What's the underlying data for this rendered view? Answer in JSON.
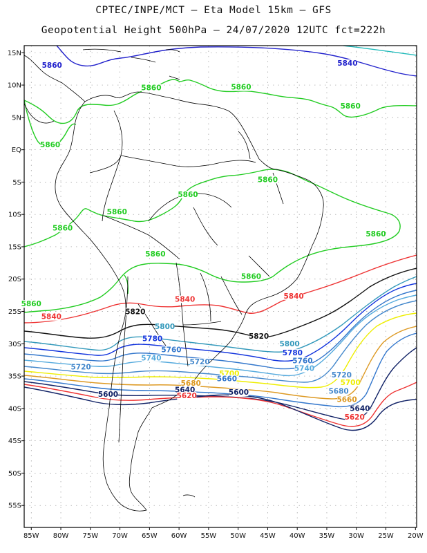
{
  "title_line1": "CPTEC/INPE/MCT –  Eta Model 15km – GFS",
  "title_line2": "Geopotential Height 500hPa – 24/07/2020 12UTC fct=222h",
  "lat_labels": [
    "15N",
    "10N",
    "5N",
    "EQ",
    "5S",
    "10S",
    "15S",
    "20S",
    "25S",
    "30S",
    "35S",
    "40S",
    "45S",
    "50S",
    "55S"
  ],
  "lat_values": [
    15,
    10,
    5,
    0,
    -5,
    -10,
    -15,
    -20,
    -25,
    -30,
    -35,
    -40,
    -45,
    -50,
    -55
  ],
  "lon_labels": [
    "85W",
    "80W",
    "75W",
    "70W",
    "65W",
    "60W",
    "55W",
    "50W",
    "45W",
    "40W",
    "35W",
    "30W",
    "25W",
    "20W"
  ],
  "lon_values": [
    -85,
    -80,
    -75,
    -70,
    -65,
    -60,
    -55,
    -50,
    -45,
    -40,
    -35,
    -30,
    -25,
    -20
  ],
  "colors": {
    "c5860": "#22cc22",
    "c5840": "#ee3333",
    "c5820": "#111111",
    "c5800": "#3399bb",
    "c5780": "#1133dd",
    "c5760": "#3377cc",
    "c5740": "#55aadd",
    "c5720": "#4488cc",
    "c5700": "#eeee00",
    "c5680": "#dd9922",
    "c5640": "#112266",
    "c5620": "#ee3333",
    "c5600": "#112266",
    "c5880": "#2222cc",
    "c5900": "#22bbbb",
    "map": "#000000"
  },
  "labels": [
    {
      "text": "5860",
      "lon": -81.5,
      "lat": 12.7,
      "color": "#2222cc"
    },
    {
      "text": "5840",
      "lon": -31.5,
      "lat": 13.0,
      "color": "#2222cc"
    },
    {
      "text": "5860",
      "lon": -64.7,
      "lat": 9.2,
      "color": "#22cc22"
    },
    {
      "text": "5860",
      "lon": -49.5,
      "lat": 9.3,
      "color": "#22cc22"
    },
    {
      "text": "5860",
      "lon": -31.0,
      "lat": 6.4,
      "color": "#22cc22"
    },
    {
      "text": "5860",
      "lon": -81.8,
      "lat": 0.4,
      "color": "#22cc22"
    },
    {
      "text": "5860",
      "lon": -58.5,
      "lat": -7.3,
      "color": "#22cc22"
    },
    {
      "text": "5860",
      "lon": -45.0,
      "lat": -5.0,
      "color": "#22cc22"
    },
    {
      "text": "5860",
      "lon": -70.5,
      "lat": -10.0,
      "color": "#22cc22"
    },
    {
      "text": "5860",
      "lon": -79.7,
      "lat": -12.5,
      "color": "#22cc22"
    },
    {
      "text": "5860",
      "lon": -26.7,
      "lat": -13.4,
      "color": "#22cc22"
    },
    {
      "text": "5860",
      "lon": -64.0,
      "lat": -16.5,
      "color": "#22cc22"
    },
    {
      "text": "5860",
      "lon": -47.8,
      "lat": -20.0,
      "color": "#22cc22"
    },
    {
      "text": "5860",
      "lon": -85.0,
      "lat": -24.2,
      "color": "#22cc22"
    },
    {
      "text": "5840",
      "lon": -59.0,
      "lat": -23.5,
      "color": "#ee3333"
    },
    {
      "text": "5840",
      "lon": -40.6,
      "lat": -23.0,
      "color": "#ee3333"
    },
    {
      "text": "5840",
      "lon": -81.6,
      "lat": -26.2,
      "color": "#ee3333"
    },
    {
      "text": "5820",
      "lon": -67.4,
      "lat": -25.4,
      "color": "#111111"
    },
    {
      "text": "5820",
      "lon": -46.5,
      "lat": -29.2,
      "color": "#111111"
    },
    {
      "text": "5800",
      "lon": -62.4,
      "lat": -27.7,
      "color": "#3399bb"
    },
    {
      "text": "5800",
      "lon": -41.3,
      "lat": -30.4,
      "color": "#3399bb"
    },
    {
      "text": "5780",
      "lon": -64.5,
      "lat": -29.6,
      "color": "#1133dd"
    },
    {
      "text": "5780",
      "lon": -40.8,
      "lat": -31.8,
      "color": "#1133dd"
    },
    {
      "text": "5760",
      "lon": -61.3,
      "lat": -31.3,
      "color": "#3377cc"
    },
    {
      "text": "5760",
      "lon": -39.1,
      "lat": -33.0,
      "color": "#3377cc"
    },
    {
      "text": "5740",
      "lon": -64.7,
      "lat": -32.6,
      "color": "#55aadd"
    },
    {
      "text": "5740",
      "lon": -38.8,
      "lat": -34.2,
      "color": "#55aadd"
    },
    {
      "text": "5720",
      "lon": -56.5,
      "lat": -33.2,
      "color": "#4488cc"
    },
    {
      "text": "5720",
      "lon": -76.6,
      "lat": -34.0,
      "color": "#4488cc"
    },
    {
      "text": "5720",
      "lon": -32.5,
      "lat": -35.2,
      "color": "#4488cc"
    },
    {
      "text": "5700",
      "lon": -51.5,
      "lat": -35.0,
      "color": "#eeee00"
    },
    {
      "text": "5700",
      "lon": -31.0,
      "lat": -36.4,
      "color": "#eeee00"
    },
    {
      "text": "5680",
      "lon": -58.0,
      "lat": -36.5,
      "color": "#dd9922"
    },
    {
      "text": "5680",
      "lon": -33.0,
      "lat": -37.7,
      "color": "#4488cc"
    },
    {
      "text": "5660",
      "lon": -51.9,
      "lat": -35.8,
      "color": "#3377cc"
    },
    {
      "text": "5660",
      "lon": -31.6,
      "lat": -39.0,
      "color": "#dd9922"
    },
    {
      "text": "5640",
      "lon": -59.0,
      "lat": -37.5,
      "color": "#112266"
    },
    {
      "text": "5640",
      "lon": -29.4,
      "lat": -40.4,
      "color": "#112266"
    },
    {
      "text": "5620",
      "lon": -58.7,
      "lat": -38.4,
      "color": "#ee3333"
    },
    {
      "text": "5620",
      "lon": -30.3,
      "lat": -41.7,
      "color": "#ee3333"
    },
    {
      "text": "5600",
      "lon": -72.0,
      "lat": -38.2,
      "color": "#112266"
    },
    {
      "text": "5600",
      "lon": -49.9,
      "lat": -37.9,
      "color": "#112266"
    }
  ]
}
